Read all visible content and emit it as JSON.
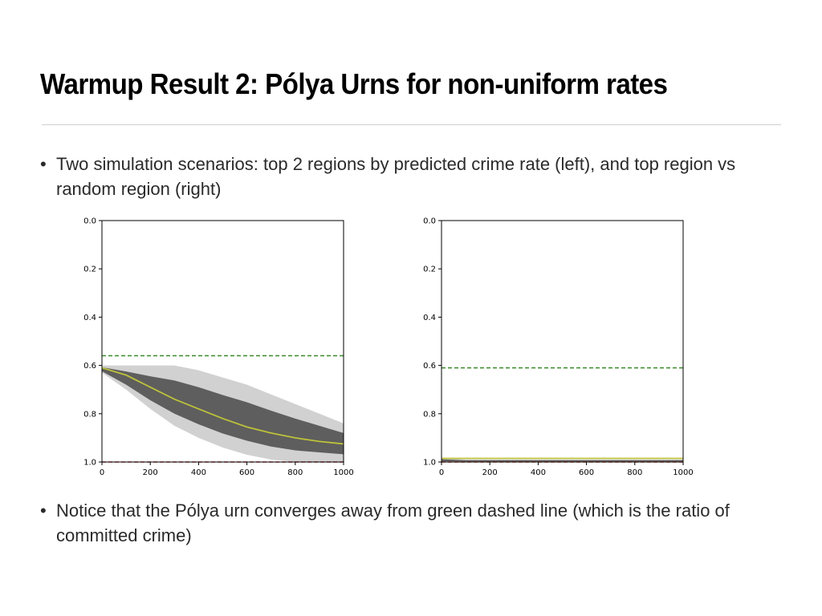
{
  "slide": {
    "title": "Warmup Result 2: Pólya Urns for non-uniform rates",
    "bullets": [
      "Two simulation scenarios: top 2 regions by predicted crime rate (left), and top region vs random region (right)",
      "Notice that the Pólya urn converges away from green dashed line (which is the ratio of committed crime)"
    ],
    "bullet_glyph": "•"
  },
  "chart_data": [
    {
      "type": "line",
      "title": "",
      "xlabel": "",
      "ylabel": "",
      "xlim": [
        0,
        1000
      ],
      "ylim": [
        0,
        1.0
      ],
      "y_inverted": true,
      "x_ticks": [
        "0",
        "200",
        "400",
        "600",
        "800",
        "1000"
      ],
      "y_ticks": [
        "0.0",
        "0.2",
        "0.4",
        "0.6",
        "0.8",
        "1.0"
      ],
      "grid": false,
      "series": [
        {
          "kind": "mean-curve",
          "color": "#bdc23a",
          "x": [
            0,
            100,
            200,
            300,
            400,
            500,
            600,
            700,
            800,
            900,
            1000
          ],
          "y": [
            0.61,
            0.64,
            0.69,
            0.74,
            0.78,
            0.82,
            0.855,
            0.88,
            0.9,
            0.915,
            0.925
          ]
        },
        {
          "kind": "hline",
          "color": "#3b8a2a",
          "style": "dashed",
          "y": 0.56
        },
        {
          "kind": "hline",
          "color": "#d04040",
          "style": "dashed",
          "y": 1.0
        }
      ],
      "density_band": {
        "color": "#000000",
        "x": [
          0,
          100,
          200,
          300,
          400,
          500,
          600,
          700,
          800,
          900,
          1000
        ],
        "low": [
          0.6,
          0.6,
          0.6,
          0.6,
          0.62,
          0.65,
          0.68,
          0.72,
          0.76,
          0.8,
          0.84
        ],
        "high": [
          0.63,
          0.7,
          0.78,
          0.85,
          0.9,
          0.94,
          0.97,
          0.99,
          1.0,
          1.0,
          1.0
        ]
      }
    },
    {
      "type": "line",
      "title": "",
      "xlabel": "",
      "ylabel": "",
      "xlim": [
        0,
        1000
      ],
      "ylim": [
        0,
        1.0
      ],
      "y_inverted": true,
      "x_ticks": [
        "0",
        "200",
        "400",
        "600",
        "800",
        "1000"
      ],
      "y_ticks": [
        "0.0",
        "0.2",
        "0.4",
        "0.6",
        "0.8",
        "1.0"
      ],
      "grid": false,
      "series": [
        {
          "kind": "mean-curve",
          "color": "#bdc23a",
          "x": [
            0,
            100,
            200,
            300,
            400,
            500,
            600,
            700,
            800,
            900,
            1000
          ],
          "y": [
            0.985,
            0.985,
            0.985,
            0.985,
            0.985,
            0.985,
            0.985,
            0.985,
            0.985,
            0.985,
            0.985
          ]
        },
        {
          "kind": "hline",
          "color": "#3b8a2a",
          "style": "dashed",
          "y": 0.61
        },
        {
          "kind": "hline",
          "color": "#d04040",
          "style": "dashed",
          "y": 1.0
        }
      ],
      "density_band": {
        "color": "#000000",
        "x": [
          0,
          100,
          200,
          300,
          400,
          500,
          600,
          700,
          800,
          900,
          1000
        ],
        "low": [
          0.985,
          0.99,
          0.99,
          0.99,
          0.99,
          0.99,
          0.99,
          0.99,
          0.99,
          0.99,
          0.99
        ],
        "high": [
          1.0,
          1.0,
          1.0,
          1.0,
          1.0,
          1.0,
          1.0,
          1.0,
          1.0,
          1.0,
          1.0
        ]
      }
    }
  ]
}
